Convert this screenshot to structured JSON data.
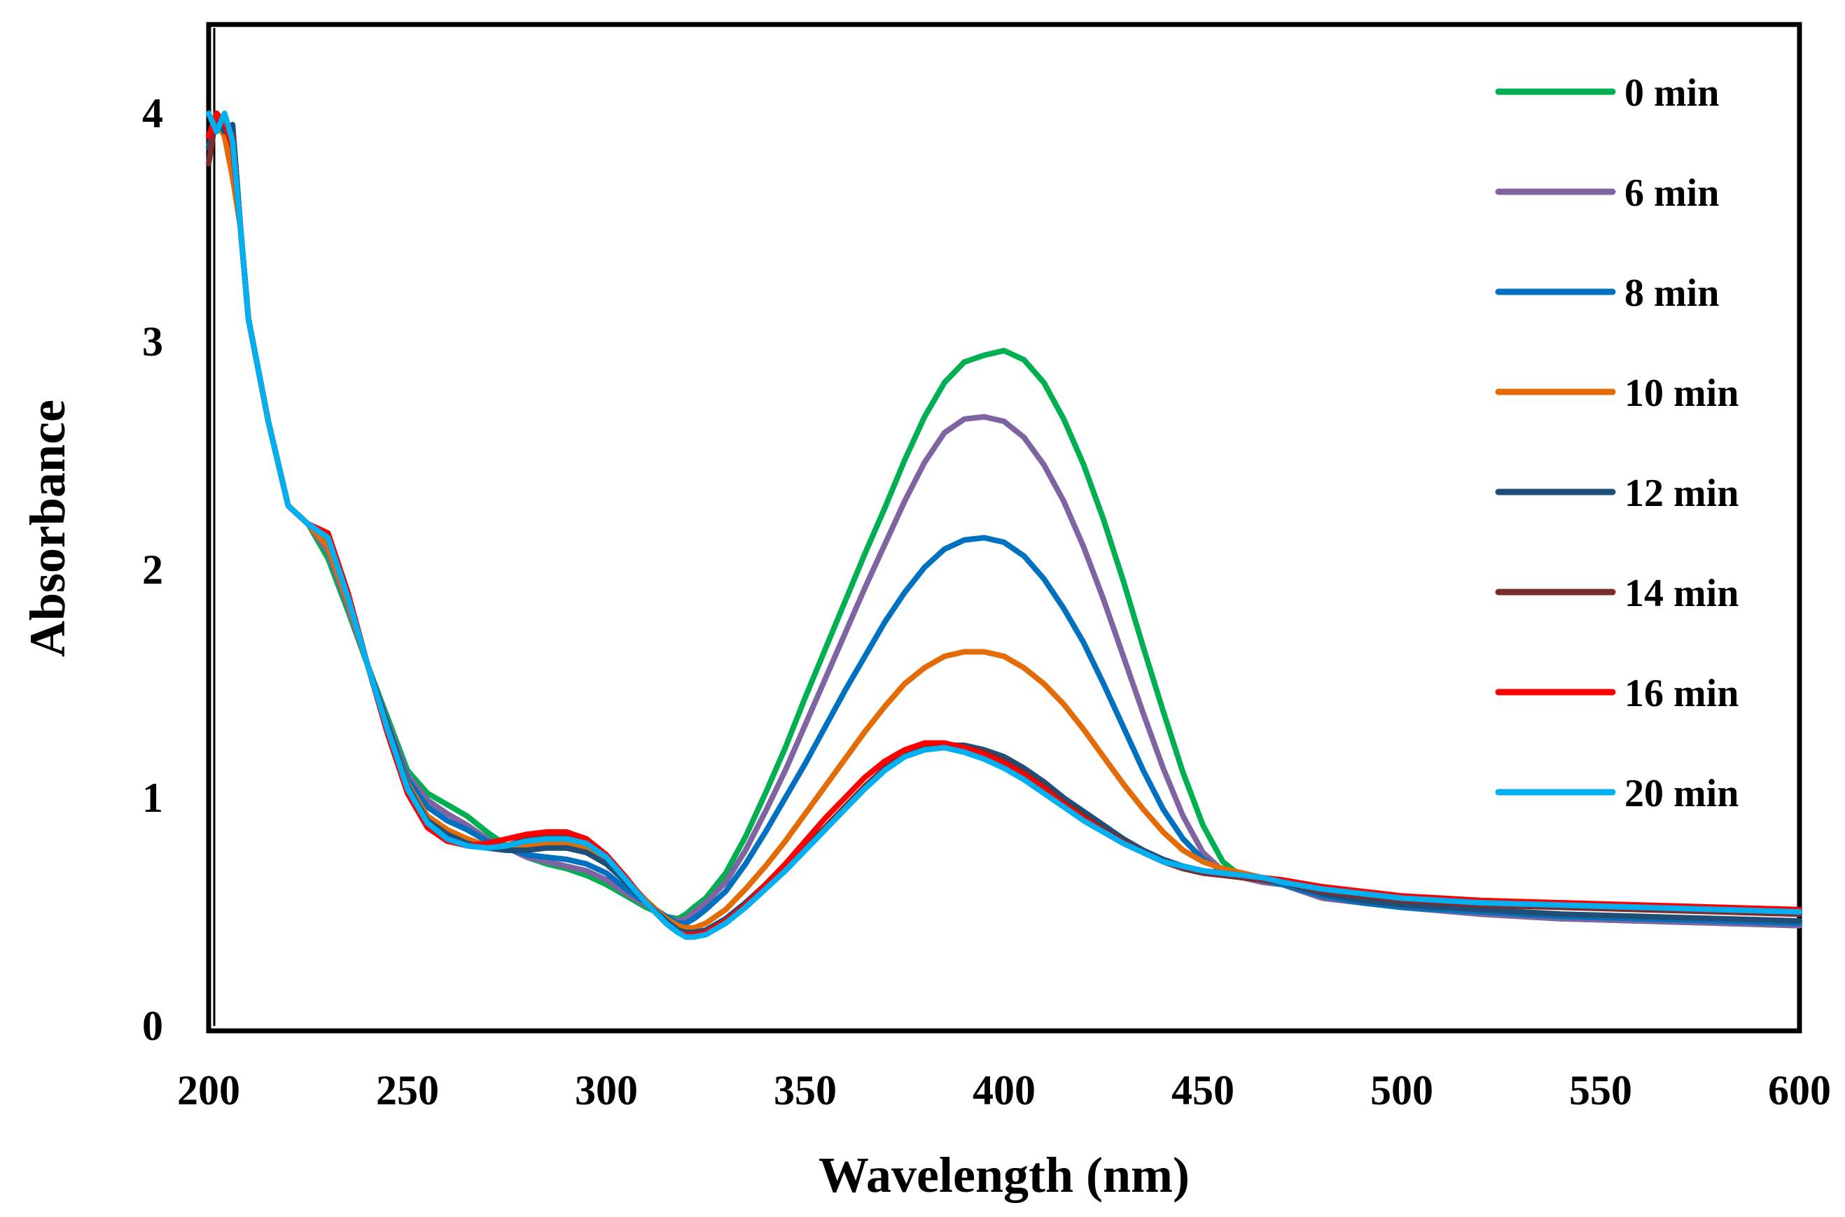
{
  "chart_data": {
    "type": "line",
    "title": "",
    "xlabel": "Wavelength (nm)",
    "ylabel": "Absorbance",
    "xlim": [
      200,
      600
    ],
    "ylim": [
      0,
      4.4
    ],
    "xticks": [
      "200",
      "250",
      "300",
      "350",
      "400",
      "450",
      "500",
      "550",
      "600"
    ],
    "yticks": [
      "0",
      "1",
      "2",
      "3",
      "4"
    ],
    "grid": false,
    "legend_position": "top-right",
    "series": [
      {
        "name": "0 min",
        "color": "#00B050",
        "x": [
          200,
          202,
          204,
          206,
          208,
          210,
          215,
          220,
          225,
          230,
          235,
          240,
          245,
          250,
          255,
          260,
          265,
          270,
          275,
          280,
          285,
          290,
          295,
          300,
          305,
          310,
          315,
          318,
          320,
          322,
          325,
          330,
          335,
          340,
          345,
          350,
          355,
          360,
          365,
          370,
          375,
          380,
          385,
          390,
          395,
          400,
          405,
          410,
          415,
          420,
          425,
          430,
          435,
          440,
          445,
          450,
          455,
          460,
          465,
          470,
          480,
          490,
          500,
          520,
          540,
          560,
          580,
          600
        ],
        "y": [
          3.85,
          3.98,
          3.92,
          3.95,
          3.5,
          3.1,
          2.65,
          2.28,
          2.2,
          2.05,
          1.82,
          1.58,
          1.35,
          1.12,
          1.02,
          0.97,
          0.92,
          0.85,
          0.79,
          0.74,
          0.71,
          0.69,
          0.66,
          0.62,
          0.57,
          0.52,
          0.48,
          0.47,
          0.49,
          0.52,
          0.56,
          0.67,
          0.83,
          1.02,
          1.22,
          1.44,
          1.65,
          1.86,
          2.07,
          2.27,
          2.48,
          2.67,
          2.82,
          2.91,
          2.94,
          2.96,
          2.92,
          2.82,
          2.66,
          2.46,
          2.22,
          1.95,
          1.66,
          1.38,
          1.11,
          0.88,
          0.72,
          0.65,
          0.63,
          0.62,
          0.56,
          0.54,
          0.52,
          0.49,
          0.47,
          0.46,
          0.45,
          0.44
        ]
      },
      {
        "name": "6 min",
        "color": "#8064A2",
        "x": [
          200,
          202,
          204,
          206,
          208,
          210,
          215,
          220,
          225,
          230,
          235,
          240,
          245,
          250,
          255,
          260,
          265,
          270,
          275,
          280,
          285,
          290,
          295,
          300,
          305,
          310,
          315,
          318,
          320,
          322,
          325,
          330,
          335,
          340,
          345,
          350,
          355,
          360,
          365,
          370,
          375,
          380,
          385,
          390,
          395,
          400,
          405,
          410,
          415,
          420,
          425,
          430,
          435,
          440,
          445,
          450,
          455,
          460,
          465,
          470,
          480,
          490,
          500,
          520,
          540,
          560,
          580,
          600
        ],
        "y": [
          3.85,
          3.98,
          3.92,
          3.95,
          3.5,
          3.1,
          2.65,
          2.28,
          2.2,
          2.08,
          1.84,
          1.58,
          1.33,
          1.1,
          0.99,
          0.93,
          0.88,
          0.82,
          0.78,
          0.74,
          0.72,
          0.7,
          0.68,
          0.64,
          0.58,
          0.53,
          0.48,
          0.46,
          0.47,
          0.5,
          0.54,
          0.63,
          0.77,
          0.94,
          1.12,
          1.32,
          1.52,
          1.72,
          1.92,
          2.11,
          2.3,
          2.47,
          2.6,
          2.66,
          2.67,
          2.65,
          2.58,
          2.46,
          2.3,
          2.1,
          1.87,
          1.62,
          1.37,
          1.13,
          0.92,
          0.76,
          0.68,
          0.65,
          0.63,
          0.62,
          0.56,
          0.54,
          0.52,
          0.49,
          0.47,
          0.46,
          0.45,
          0.44
        ]
      },
      {
        "name": "8 min",
        "color": "#0070C0",
        "x": [
          200,
          202,
          204,
          206,
          208,
          210,
          215,
          220,
          225,
          230,
          235,
          240,
          245,
          250,
          255,
          260,
          265,
          270,
          275,
          280,
          285,
          290,
          295,
          300,
          305,
          310,
          315,
          318,
          320,
          322,
          325,
          330,
          335,
          340,
          345,
          350,
          355,
          360,
          365,
          370,
          375,
          380,
          385,
          390,
          395,
          400,
          405,
          410,
          415,
          420,
          425,
          430,
          435,
          440,
          445,
          450,
          455,
          460,
          465,
          470,
          480,
          490,
          500,
          520,
          540,
          560,
          580,
          600
        ],
        "y": [
          3.85,
          3.98,
          3.92,
          3.95,
          3.5,
          3.1,
          2.65,
          2.28,
          2.2,
          2.12,
          1.86,
          1.58,
          1.32,
          1.08,
          0.96,
          0.9,
          0.86,
          0.81,
          0.78,
          0.75,
          0.74,
          0.73,
          0.71,
          0.67,
          0.6,
          0.54,
          0.48,
          0.45,
          0.45,
          0.47,
          0.51,
          0.59,
          0.71,
          0.85,
          1.0,
          1.15,
          1.31,
          1.47,
          1.62,
          1.77,
          1.9,
          2.01,
          2.09,
          2.13,
          2.14,
          2.12,
          2.06,
          1.96,
          1.83,
          1.68,
          1.5,
          1.31,
          1.12,
          0.95,
          0.82,
          0.73,
          0.68,
          0.66,
          0.64,
          0.62,
          0.57,
          0.54,
          0.52,
          0.5,
          0.48,
          0.47,
          0.46,
          0.45
        ]
      },
      {
        "name": "10 min",
        "color": "#E36C09",
        "x": [
          200,
          202,
          204,
          206,
          208,
          210,
          215,
          220,
          225,
          230,
          235,
          240,
          245,
          250,
          255,
          260,
          265,
          270,
          275,
          280,
          285,
          290,
          295,
          300,
          305,
          310,
          315,
          318,
          320,
          322,
          325,
          330,
          335,
          340,
          345,
          350,
          355,
          360,
          365,
          370,
          375,
          380,
          385,
          390,
          395,
          400,
          405,
          410,
          415,
          420,
          425,
          430,
          435,
          440,
          445,
          450,
          455,
          460,
          465,
          470,
          480,
          490,
          500,
          520,
          540,
          560,
          580,
          600
        ],
        "y": [
          3.9,
          3.96,
          3.9,
          3.72,
          3.5,
          3.1,
          2.65,
          2.28,
          2.2,
          2.1,
          1.86,
          1.58,
          1.32,
          1.06,
          0.92,
          0.86,
          0.82,
          0.79,
          0.78,
          0.79,
          0.8,
          0.8,
          0.78,
          0.73,
          0.64,
          0.55,
          0.47,
          0.44,
          0.43,
          0.43,
          0.45,
          0.51,
          0.6,
          0.7,
          0.81,
          0.93,
          1.05,
          1.17,
          1.29,
          1.4,
          1.5,
          1.57,
          1.62,
          1.64,
          1.64,
          1.62,
          1.57,
          1.5,
          1.41,
          1.3,
          1.18,
          1.06,
          0.95,
          0.85,
          0.77,
          0.72,
          0.69,
          0.67,
          0.65,
          0.63,
          0.58,
          0.55,
          0.53,
          0.51,
          0.49,
          0.48,
          0.47,
          0.46
        ]
      },
      {
        "name": "12 min",
        "color": "#1F4E79",
        "x": [
          200,
          202,
          204,
          206,
          208,
          210,
          215,
          220,
          225,
          230,
          235,
          240,
          245,
          250,
          255,
          260,
          265,
          270,
          275,
          280,
          285,
          290,
          295,
          300,
          305,
          310,
          315,
          318,
          320,
          322,
          325,
          330,
          335,
          340,
          345,
          350,
          355,
          360,
          365,
          370,
          375,
          380,
          385,
          390,
          395,
          400,
          405,
          410,
          415,
          420,
          425,
          430,
          435,
          440,
          445,
          450,
          455,
          460,
          465,
          470,
          480,
          490,
          500,
          520,
          540,
          560,
          580,
          600
        ],
        "y": [
          3.85,
          3.98,
          3.92,
          3.95,
          3.5,
          3.1,
          2.65,
          2.28,
          2.2,
          2.14,
          1.88,
          1.58,
          1.32,
          1.05,
          0.9,
          0.84,
          0.8,
          0.78,
          0.77,
          0.77,
          0.78,
          0.78,
          0.76,
          0.71,
          0.63,
          0.54,
          0.46,
          0.42,
          0.41,
          0.41,
          0.42,
          0.47,
          0.54,
          0.62,
          0.7,
          0.78,
          0.87,
          0.96,
          1.05,
          1.13,
          1.19,
          1.22,
          1.23,
          1.23,
          1.21,
          1.18,
          1.13,
          1.07,
          1.0,
          0.94,
          0.88,
          0.82,
          0.77,
          0.73,
          0.7,
          0.68,
          0.67,
          0.66,
          0.65,
          0.63,
          0.58,
          0.55,
          0.53,
          0.51,
          0.49,
          0.48,
          0.47,
          0.46
        ]
      },
      {
        "name": "14 min",
        "color": "#7B2C2C",
        "x": [
          200,
          202,
          204,
          206,
          208,
          210,
          215,
          220,
          225,
          230,
          235,
          240,
          245,
          250,
          255,
          260,
          265,
          270,
          275,
          280,
          285,
          290,
          295,
          300,
          305,
          310,
          315,
          318,
          320,
          322,
          325,
          330,
          335,
          340,
          345,
          350,
          355,
          360,
          365,
          370,
          375,
          380,
          385,
          390,
          395,
          400,
          405,
          410,
          415,
          420,
          425,
          430,
          435,
          440,
          445,
          450,
          455,
          460,
          465,
          470,
          480,
          490,
          500,
          520,
          540,
          560,
          580,
          600
        ],
        "y": [
          3.78,
          4.0,
          3.95,
          3.9,
          3.5,
          3.1,
          2.65,
          2.28,
          2.2,
          2.16,
          1.9,
          1.58,
          1.3,
          1.03,
          0.88,
          0.82,
          0.79,
          0.78,
          0.79,
          0.82,
          0.84,
          0.84,
          0.81,
          0.74,
          0.64,
          0.54,
          0.45,
          0.41,
          0.4,
          0.4,
          0.41,
          0.46,
          0.53,
          0.61,
          0.69,
          0.78,
          0.87,
          0.96,
          1.05,
          1.13,
          1.19,
          1.22,
          1.23,
          1.22,
          1.2,
          1.16,
          1.11,
          1.05,
          0.98,
          0.92,
          0.86,
          0.81,
          0.76,
          0.72,
          0.69,
          0.67,
          0.66,
          0.65,
          0.64,
          0.63,
          0.59,
          0.57,
          0.55,
          0.53,
          0.52,
          0.51,
          0.5,
          0.49
        ]
      },
      {
        "name": "16 min",
        "color": "#FF0000",
        "x": [
          200,
          202,
          204,
          206,
          208,
          210,
          215,
          220,
          225,
          230,
          235,
          240,
          245,
          250,
          255,
          260,
          265,
          270,
          275,
          280,
          285,
          290,
          295,
          300,
          305,
          310,
          315,
          318,
          320,
          322,
          325,
          330,
          335,
          340,
          345,
          350,
          355,
          360,
          365,
          370,
          375,
          380,
          385,
          390,
          395,
          400,
          405,
          410,
          415,
          420,
          425,
          430,
          435,
          440,
          445,
          450,
          455,
          460,
          465,
          470,
          480,
          490,
          500,
          520,
          540,
          560,
          580,
          600
        ],
        "y": [
          3.9,
          4.0,
          3.96,
          3.85,
          3.5,
          3.1,
          2.65,
          2.28,
          2.2,
          2.16,
          1.9,
          1.58,
          1.28,
          1.02,
          0.87,
          0.81,
          0.79,
          0.8,
          0.82,
          0.84,
          0.85,
          0.85,
          0.82,
          0.75,
          0.65,
          0.54,
          0.45,
          0.41,
          0.4,
          0.4,
          0.41,
          0.46,
          0.53,
          0.62,
          0.71,
          0.81,
          0.91,
          1.0,
          1.09,
          1.16,
          1.21,
          1.24,
          1.24,
          1.22,
          1.19,
          1.15,
          1.1,
          1.04,
          0.97,
          0.91,
          0.85,
          0.8,
          0.76,
          0.72,
          0.7,
          0.68,
          0.67,
          0.66,
          0.65,
          0.64,
          0.61,
          0.59,
          0.57,
          0.55,
          0.54,
          0.53,
          0.52,
          0.51
        ]
      },
      {
        "name": "20 min",
        "color": "#00B0F0",
        "x": [
          200,
          202,
          204,
          206,
          208,
          210,
          215,
          220,
          225,
          230,
          235,
          240,
          245,
          250,
          255,
          260,
          265,
          270,
          275,
          280,
          285,
          290,
          295,
          300,
          305,
          310,
          315,
          318,
          320,
          322,
          325,
          330,
          335,
          340,
          345,
          350,
          355,
          360,
          365,
          370,
          375,
          380,
          385,
          390,
          395,
          400,
          405,
          410,
          415,
          420,
          425,
          430,
          435,
          440,
          445,
          450,
          455,
          460,
          465,
          470,
          480,
          490,
          500,
          520,
          540,
          560,
          580,
          600
        ],
        "y": [
          4.0,
          3.92,
          4.0,
          3.88,
          3.5,
          3.1,
          2.65,
          2.28,
          2.2,
          2.14,
          1.88,
          1.58,
          1.3,
          1.04,
          0.89,
          0.82,
          0.79,
          0.78,
          0.79,
          0.81,
          0.82,
          0.82,
          0.8,
          0.74,
          0.64,
          0.54,
          0.45,
          0.41,
          0.39,
          0.39,
          0.4,
          0.45,
          0.52,
          0.6,
          0.68,
          0.77,
          0.86,
          0.95,
          1.04,
          1.12,
          1.18,
          1.21,
          1.22,
          1.2,
          1.17,
          1.13,
          1.08,
          1.02,
          0.96,
          0.9,
          0.85,
          0.8,
          0.76,
          0.72,
          0.7,
          0.68,
          0.67,
          0.66,
          0.65,
          0.63,
          0.6,
          0.58,
          0.56,
          0.54,
          0.53,
          0.52,
          0.51,
          0.5
        ]
      }
    ]
  }
}
